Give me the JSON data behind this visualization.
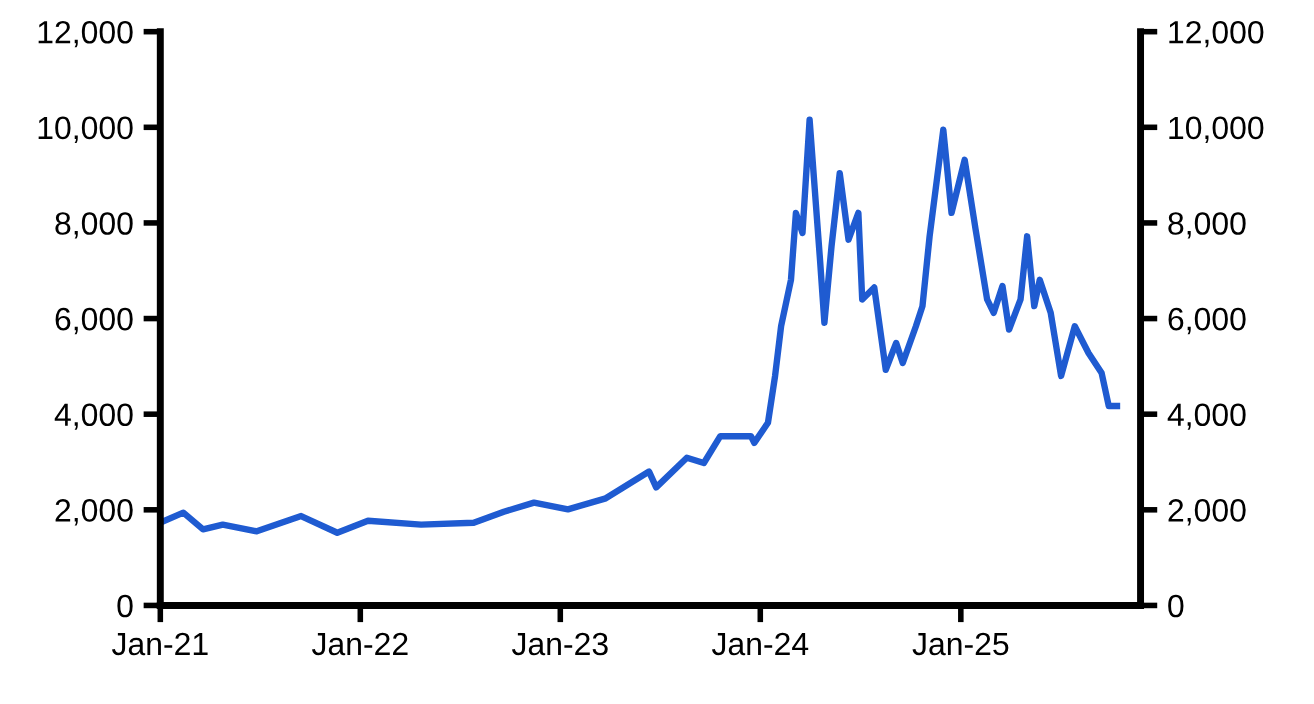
{
  "chart_data": {
    "type": "line",
    "x": [
      "2021-01-01",
      "2021-02-12",
      "2021-03-20",
      "2021-04-25",
      "2021-06-26",
      "2021-09-15",
      "2021-11-20",
      "2022-01-15",
      "2022-04-22",
      "2022-07-27",
      "2022-09-20",
      "2022-11-14",
      "2023-01-15",
      "2023-03-25",
      "2023-06-12",
      "2023-06-25",
      "2023-08-20",
      "2023-09-20",
      "2023-10-20",
      "2023-12-15",
      "2023-12-21",
      "2024-01-15",
      "2024-01-28",
      "2024-02-08",
      "2024-02-26",
      "2024-03-06",
      "2024-03-18",
      "2024-03-31",
      "2024-04-19",
      "2024-04-27",
      "2024-05-10",
      "2024-05-25",
      "2024-06-10",
      "2024-06-28",
      "2024-07-05",
      "2024-07-27",
      "2024-08-17",
      "2024-09-05",
      "2024-09-17",
      "2024-10-11",
      "2024-10-23",
      "2024-11-05",
      "2024-11-30",
      "2024-12-15",
      "2025-01-08",
      "2025-01-28",
      "2025-02-18",
      "2025-03-02",
      "2025-03-18",
      "2025-03-30",
      "2025-04-20",
      "2025-05-02",
      "2025-05-15",
      "2025-05-25",
      "2025-06-14",
      "2025-07-03",
      "2025-07-28",
      "2025-08-22",
      "2025-09-15",
      "2025-09-28",
      "2025-10-13"
    ],
    "series": [
      {
        "color": "#1f5bd1",
        "values": [
          1730,
          1940,
          1590,
          1690,
          1550,
          1870,
          1520,
          1770,
          1690,
          1730,
          1960,
          2150,
          2010,
          2240,
          2800,
          2470,
          3090,
          2980,
          3540,
          3540,
          3400,
          3820,
          4800,
          5840,
          6810,
          8210,
          7790,
          10160,
          7230,
          5910,
          7510,
          9040,
          7650,
          8210,
          6400,
          6650,
          4930,
          5490,
          5070,
          5840,
          6260,
          7720,
          9950,
          8210,
          9320,
          7860,
          6400,
          6120,
          6680,
          5770,
          6400,
          7720,
          6260,
          6810,
          6120,
          4800,
          5840,
          5280,
          4860,
          4170,
          4170
        ]
      }
    ],
    "xlim": [
      "2021-01-01",
      "2025-11-25"
    ],
    "xticks": [
      {
        "value": "2021-01-01",
        "label": "Jan-21"
      },
      {
        "value": "2022-01-01",
        "label": "Jan-22"
      },
      {
        "value": "2023-01-01",
        "label": "Jan-23"
      },
      {
        "value": "2024-01-01",
        "label": "Jan-24"
      },
      {
        "value": "2025-01-01",
        "label": "Jan-25"
      }
    ],
    "ylim": [
      0,
      12000
    ],
    "yticks": [
      0,
      {
        "value": 2000,
        "label": "2,000"
      },
      {
        "value": 4000,
        "label": "4,000"
      },
      {
        "value": 6000,
        "label": "6,000"
      },
      {
        "value": 8000,
        "label": "8,000"
      },
      {
        "value": 10000,
        "label": "10,000"
      },
      {
        "value": 12000,
        "label": "12,000"
      }
    ],
    "y2lim": [
      0,
      12000
    ],
    "y2ticks": [
      0,
      {
        "value": 2000,
        "label": "2,000"
      },
      {
        "value": 4000,
        "label": "4,000"
      },
      {
        "value": 6000,
        "label": "6,000"
      },
      {
        "value": 8000,
        "label": "8,000"
      },
      {
        "value": 10000,
        "label": "10,000"
      },
      {
        "value": 12000,
        "label": "12,000"
      }
    ],
    "grid": false,
    "marker": "none",
    "line_style": "solid"
  }
}
